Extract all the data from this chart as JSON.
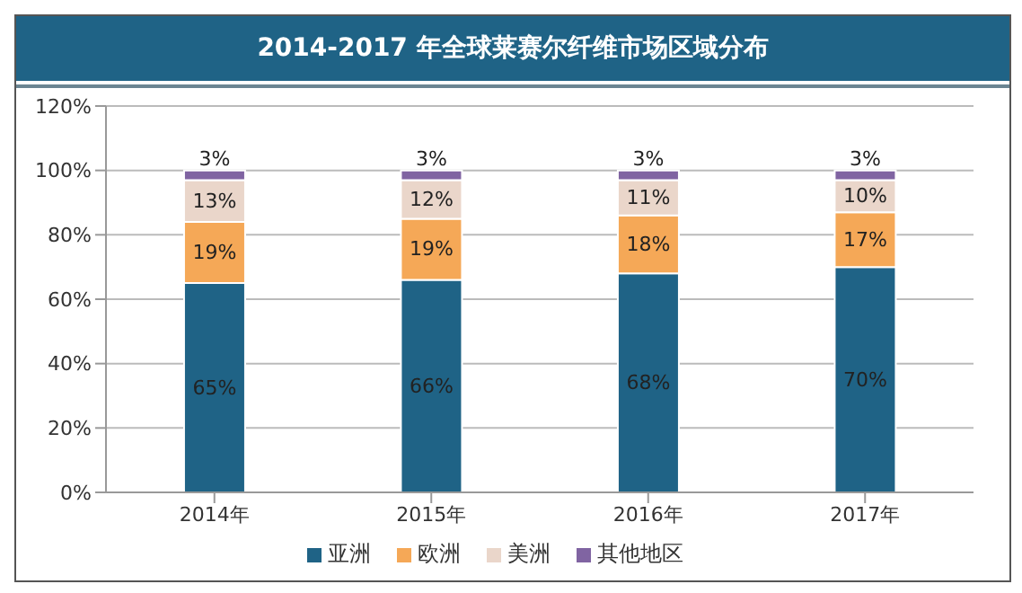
{
  "chart_data": {
    "type": "bar",
    "stacked": true,
    "title": "2014-2017 年全球莱赛尔纤维市场区域分布",
    "categories": [
      "2014年",
      "2015年",
      "2016年",
      "2017年"
    ],
    "series": [
      {
        "name": "亚洲",
        "color": "#1f6386",
        "values": [
          65,
          66,
          68,
          70
        ],
        "value_labels": [
          "65%",
          "66%",
          "68%",
          "70%"
        ]
      },
      {
        "name": "欧洲",
        "color": "#f5a857",
        "values": [
          19,
          19,
          18,
          17
        ],
        "value_labels": [
          "19%",
          "19%",
          "18%",
          "17%"
        ]
      },
      {
        "name": "美洲",
        "color": "#ead6ca",
        "values": [
          13,
          12,
          11,
          10
        ],
        "value_labels": [
          "13%",
          "12%",
          "11%",
          "10%"
        ]
      },
      {
        "name": "其他地区",
        "color": "#8064a2",
        "values": [
          3,
          3,
          3,
          3
        ],
        "value_labels": [
          "3%",
          "3%",
          "3%",
          "3%"
        ]
      }
    ],
    "ylim": [
      0,
      120
    ],
    "yticks": [
      {
        "value": 0,
        "label": "0%"
      },
      {
        "value": 20,
        "label": "20%"
      },
      {
        "value": 40,
        "label": "40%"
      },
      {
        "value": 60,
        "label": "60%"
      },
      {
        "value": 80,
        "label": "80%"
      },
      {
        "value": 100,
        "label": "100%"
      },
      {
        "value": 120,
        "label": "120%"
      }
    ],
    "grid": "y",
    "legend": "bottom"
  }
}
